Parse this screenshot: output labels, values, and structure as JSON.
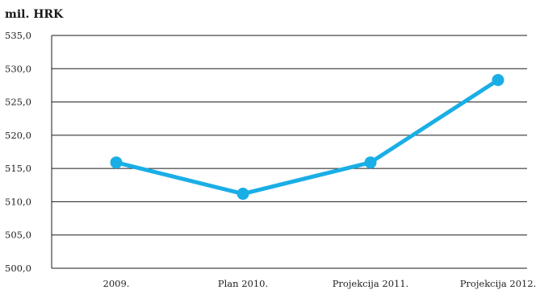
{
  "chart_data": {
    "type": "line",
    "ylabel": "mil. HRK",
    "categories": [
      "2009.",
      "Plan 2010.",
      "Projekcija 2011.",
      "Projekcija 2012."
    ],
    "series": [
      {
        "values": [
          515.9,
          511.2,
          515.9,
          528.3
        ]
      }
    ],
    "ylim": [
      500,
      535
    ],
    "yticks": [
      500,
      505,
      510,
      515,
      520,
      525,
      530,
      535
    ],
    "ytick_labels": [
      "500,0",
      "505,0",
      "510,0",
      "515,0",
      "520,0",
      "525,0",
      "530,0",
      "535,0"
    ],
    "grid": true,
    "line_color": "#1aaee6",
    "grid_color": "#1a1a1a"
  }
}
